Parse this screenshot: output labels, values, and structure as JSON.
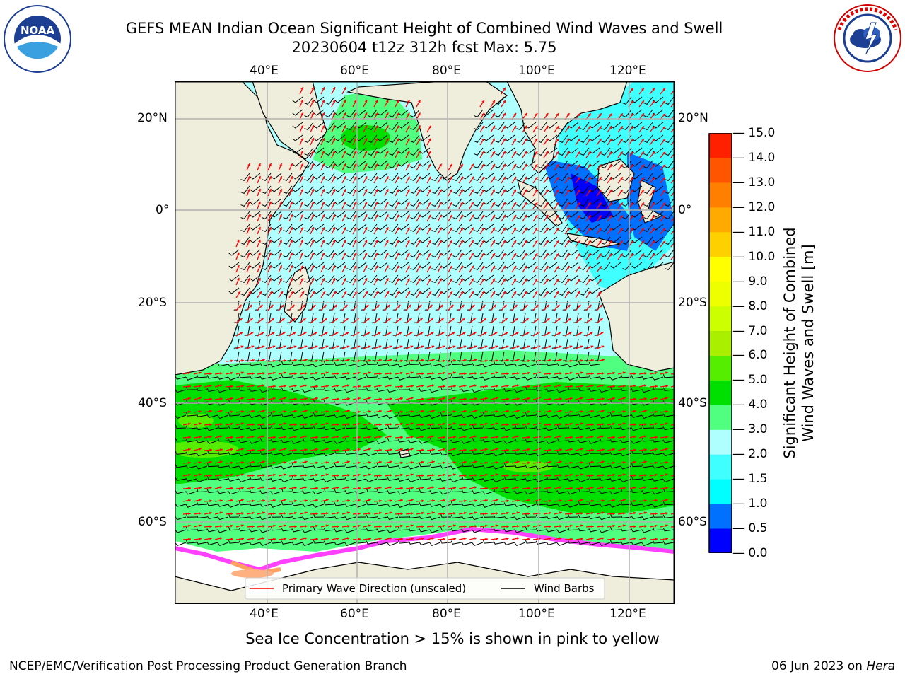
{
  "title": {
    "line1": "GEFS MEAN Indian Ocean Significant Height of Combined Wind Waves and Swell",
    "line2": "20230604 t12z 312h fcst   Max: 5.75"
  },
  "logos": {
    "left": {
      "name": "noaa-logo",
      "text": "NOAA",
      "ring_text": "NATIONAL OCEANIC AND ATMOSPHERIC ADMINISTRATION · U.S. DEPARTMENT OF COMMERCE"
    },
    "right": {
      "name": "nws-logo",
      "ring_text": "NATIONAL WEATHER SERVICE"
    }
  },
  "map": {
    "region": "Indian Ocean",
    "lon_ticks": [
      "40°E",
      "60°E",
      "80°E",
      "100°E",
      "120°E"
    ],
    "lat_ticks": [
      "20°N",
      "0°",
      "20°S",
      "40°S",
      "60°S"
    ],
    "legend": {
      "wave_direction": "Primary Wave Direction (unscaled)",
      "wind_barbs": "Wind Barbs"
    },
    "colors": {
      "land": "#efeddc",
      "wave_arrow": "#ff0000",
      "wind_barb": "#000000",
      "grid": "#b0b0b0"
    }
  },
  "colorbar": {
    "label_line1": "Significant Height of Combined",
    "label_line2": "Wind Waves and Swell [m]",
    "ticks": [
      "0.0",
      "0.5",
      "1.0",
      "1.5",
      "2.0",
      "3.0",
      "4.0",
      "5.0",
      "6.0",
      "7.0",
      "8.0",
      "9.0",
      "10.0",
      "11.0",
      "12.0",
      "13.0",
      "14.0",
      "15.0"
    ],
    "colors": [
      "#0000ff",
      "#0070ff",
      "#00ffff",
      "#40ffff",
      "#b0ffff",
      "#50ff80",
      "#00e000",
      "#55ee00",
      "#aaee00",
      "#ccff00",
      "#eeff00",
      "#ffff00",
      "#ffd000",
      "#ffaa00",
      "#ff8000",
      "#ff5500",
      "#ff2000"
    ]
  },
  "caption": "Sea Ice Concentration > 15% is shown in pink to yellow",
  "footer": {
    "left": "NCEP/EMC/Verification Post Processing Product Generation Branch",
    "right_date": "06 Jun 2023 on ",
    "right_host": "Hera"
  }
}
